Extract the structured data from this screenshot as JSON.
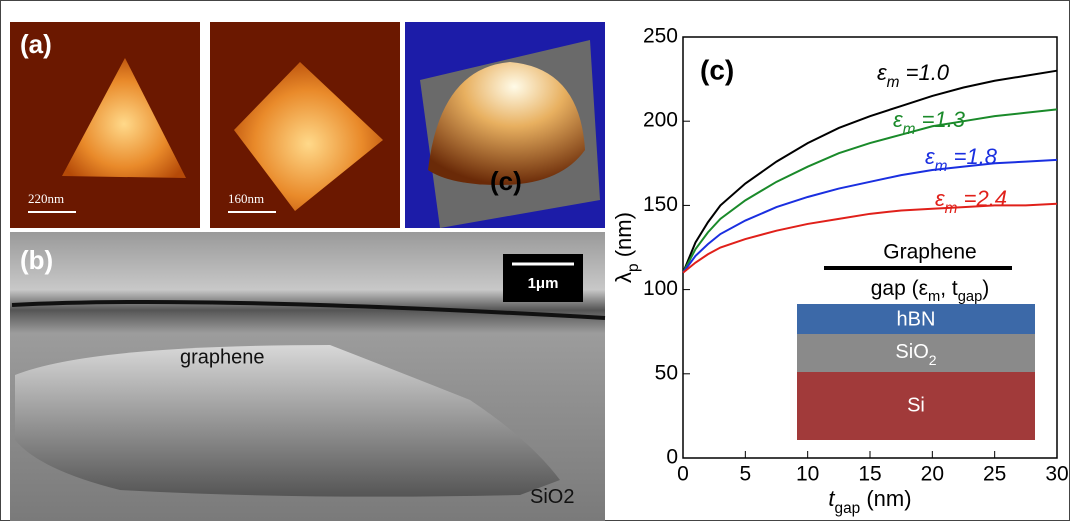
{
  "figure_panels": {
    "label_a": "(a)",
    "scale_1": "220nm",
    "scale_2": "160nm",
    "label_c_image": "(c)",
    "label_b": "(b)",
    "scale_sem": "1μm",
    "graphene": "graphene",
    "substrate": "SiO2"
  },
  "chart_data": {
    "type": "line",
    "panel_label": "(c)",
    "xlabel": "tgap (nm)",
    "ylabel": "λp (nm)",
    "x": [
      0,
      1,
      2,
      3,
      5,
      7.5,
      10,
      12.5,
      15,
      17.5,
      20,
      22.5,
      25,
      27.5,
      30
    ],
    "series": [
      {
        "name": "εm =1.0",
        "color": "#000000",
        "values": [
          110,
          128,
          140,
          150,
          163,
          176,
          187,
          196,
          203,
          209,
          215,
          220,
          224,
          227,
          230
        ]
      },
      {
        "name": "εm =1.3",
        "color": "#1a8a2a",
        "values": [
          110,
          124,
          134,
          142,
          153,
          164,
          173,
          181,
          187,
          192,
          197,
          200,
          203,
          205,
          207
        ]
      },
      {
        "name": "εm =1.8",
        "color": "#1a2fe0",
        "values": [
          110,
          120,
          127,
          133,
          141,
          149,
          155,
          160,
          164,
          168,
          171,
          173,
          175,
          176,
          177
        ]
      },
      {
        "name": "εm =2.4",
        "color": "#e0201a",
        "values": [
          110,
          116,
          121,
          125,
          130,
          135,
          139,
          142,
          145,
          147,
          148,
          149,
          150,
          150,
          151
        ]
      }
    ],
    "xlim": [
      0,
      30
    ],
    "ylim": [
      0,
      250
    ],
    "xticks": [
      0,
      5,
      10,
      15,
      20,
      25,
      30
    ],
    "yticks": [
      0,
      50,
      100,
      150,
      200,
      250
    ],
    "inset": {
      "top": "Graphene",
      "gap": "gap (εm, tgap)",
      "layer_1": "hBN",
      "layer_2": "SiO2",
      "layer_3": "Si"
    }
  }
}
